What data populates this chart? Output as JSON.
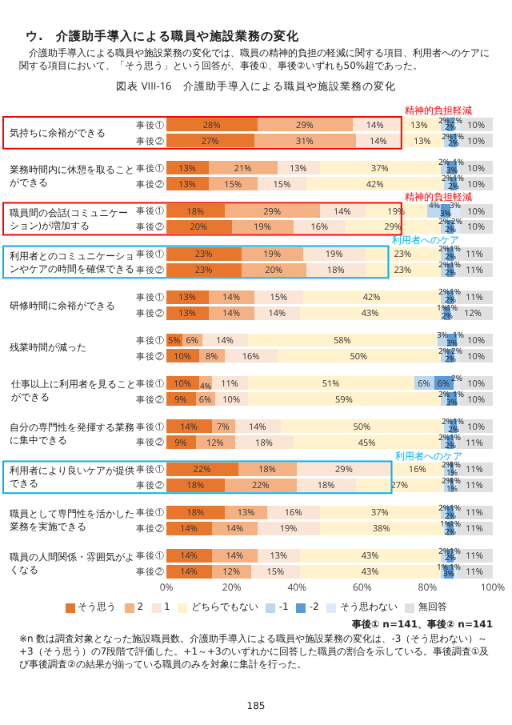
{
  "chart_data": {
    "type": "bar",
    "orientation": "horizontal",
    "stacked": true,
    "title": "図表 VIII-16　介護助手導入による職員や施設業務の変化",
    "categories": [
      "事後①",
      "事後②",
      "事後①",
      "事後②",
      "事後①",
      "事後②",
      "事後①",
      "事後②",
      "事後①",
      "事後②",
      "事後①",
      "事後②",
      "事後①",
      "事後②",
      "事後①",
      "事後②",
      "事後①",
      "事後②",
      "事後①",
      "事後②",
      "事後①",
      "事後②"
    ],
    "series": [
      {
        "name": "そう思う",
        "color": "#e8772e",
        "values": [
          28,
          27,
          13,
          13,
          18,
          20,
          23,
          23,
          13,
          13,
          5,
          10,
          10,
          9,
          14,
          9,
          22,
          18,
          18,
          14,
          14,
          14
        ],
        "value_labels": [
          "28%",
          "27%",
          "13%",
          "13%",
          "18%",
          "20%",
          "23%",
          "23%",
          "13%",
          "13%",
          "5%",
          "10%",
          "10%",
          "9%",
          "14%",
          "9%",
          "22%",
          "18%",
          "18%",
          "14%",
          "14%",
          "14%"
        ]
      },
      {
        "name": "2",
        "color": "#f4b183",
        "values": [
          29,
          31,
          21,
          15,
          29,
          19,
          19,
          20,
          14,
          14,
          6,
          8,
          4,
          6,
          7,
          12,
          18,
          22,
          13,
          14,
          14,
          12
        ],
        "value_labels": [
          "29%",
          "31%",
          "21%",
          "15%",
          "29%",
          "19%",
          "19%",
          "20%",
          "14%",
          "14%",
          "6%",
          "8%",
          "4%",
          "6%",
          "7%",
          "12%",
          "18%",
          "22%",
          "13%",
          "14%",
          "14%",
          "12%"
        ]
      },
      {
        "name": "1",
        "color": "#fbe5d6",
        "values": [
          14,
          14,
          13,
          15,
          14,
          16,
          19,
          18,
          15,
          14,
          14,
          16,
          11,
          10,
          14,
          18,
          29,
          18,
          16,
          19,
          13,
          15
        ],
        "value_labels": [
          "14%",
          "14%",
          "13%",
          "15%",
          "14%",
          "16%",
          "19%",
          "18%",
          "15%",
          "14%",
          "14%",
          "16%",
          "11%",
          "10%",
          "14%",
          "18%",
          "29%",
          "18%",
          "16%",
          "19%",
          "13%",
          "15%"
        ]
      },
      {
        "name": "どちらでもない",
        "color": "#fff2cc",
        "values": [
          13,
          13,
          37,
          42,
          19,
          29,
          23,
          23,
          42,
          43,
          58,
          50,
          51,
          59,
          50,
          45,
          16,
          27,
          37,
          38,
          43,
          43
        ],
        "value_labels": [
          "13%",
          "13%",
          "37%",
          "42%",
          "19%",
          "29%",
          "23%",
          "23%",
          "42%",
          "43%",
          "58%",
          "50%",
          "51%",
          "59%",
          "50%",
          "45%",
          "16%",
          "27%",
          "37%",
          "38%",
          "43%",
          "43%"
        ]
      },
      {
        "name": "-1",
        "color": "#bdd7ee",
        "values": [
          2,
          2,
          2,
          2,
          4,
          2,
          2,
          2,
          2,
          1,
          3,
          2,
          6,
          2,
          2,
          2,
          2,
          2,
          2,
          1,
          2,
          1
        ],
        "value_labels": [
          "2%",
          "2%",
          "2%",
          "2%",
          "4%",
          "2%",
          "2%",
          "2%",
          "2%",
          "1%",
          "3%",
          "2%",
          "6%",
          "2%",
          "2%",
          "2%",
          "2%",
          "2%",
          "2%",
          "1%",
          "2%",
          "1%"
        ]
      },
      {
        "name": "-2",
        "color": "#5b9bd5",
        "values": [
          2,
          2,
          3,
          2,
          3,
          2,
          2,
          2,
          2,
          2,
          3,
          2,
          6,
          3,
          2,
          2,
          1,
          1,
          2,
          2,
          2,
          3
        ],
        "value_labels": [
          "2%",
          "2%",
          "3%",
          "2%",
          "3%",
          "2%",
          "2%",
          "2%",
          "2%",
          "2%",
          "3%",
          "2%",
          "6%",
          "3%",
          "2%",
          "2%",
          "1%",
          "1%",
          "2%",
          "2%",
          "2%",
          "3%"
        ]
      },
      {
        "name": "そう思わない",
        "color": "#deebf7",
        "values": [
          2,
          1,
          1,
          1,
          3,
          2,
          1,
          1,
          1,
          1,
          1,
          2,
          2,
          1,
          1,
          1,
          1,
          1,
          1,
          1,
          1,
          1
        ],
        "value_labels": [
          "2%",
          "1%",
          "1%",
          "1%",
          "3%",
          "2%",
          "1%",
          "1%",
          "1%",
          "1%",
          "1%",
          "2%",
          "2%",
          "1%",
          "1%",
          "1%",
          "1%",
          "1%",
          "1%",
          "1%",
          "1%",
          "1%"
        ]
      },
      {
        "name": "無回答",
        "color": "#e0e0e0",
        "values": [
          10,
          10,
          10,
          10,
          10,
          10,
          11,
          11,
          11,
          12,
          10,
          10,
          10,
          10,
          10,
          11,
          11,
          11,
          11,
          11,
          11,
          11
        ],
        "value_labels": [
          "10%",
          "10%",
          "10%",
          "10%",
          "10%",
          "10%",
          "11%",
          "11%",
          "11%",
          "12%",
          "10%",
          "10%",
          "10%",
          "10%",
          "10%",
          "11%",
          "11%",
          "11%",
          "11%",
          "11%",
          "11%",
          "11%"
        ]
      }
    ],
    "xlim": [
      0,
      100
    ],
    "xticks": [
      {
        "value": 0,
        "label": "0%"
      },
      {
        "value": 20,
        "label": "20%"
      },
      {
        "value": 40,
        "label": "40%"
      },
      {
        "value": 60,
        "label": "60%"
      },
      {
        "value": 80,
        "label": "80%"
      },
      {
        "value": 100,
        "label": "100%"
      }
    ],
    "legend": "bottom",
    "annotations": [
      "ウ.　介護助手導入による職員や施設業務の変化",
      "介護助手導入による職員や施設業務の変化では、職員の精神的負担の軽減に関する項目、利用者へのケアに関する項目において、「そう思う」という回答が、事後①、事後②いずれも50%超であった。",
      "気持ちに余裕ができる",
      "業務時間内に休憩を取ることができる",
      "職員間の会話(コミュニケーション)が増加する",
      "利用者とのコミュニケーションやケアの時間を確保できる",
      "研修時間に余裕ができる",
      "残業時間が減った",
      "仕事以上に利用者を見ることができる",
      "自分の専門性を発揮する業務に集中できる",
      "利用者により良いケアが提供できる",
      "職員として専門性を活かした業務を実施できる",
      "職員の人間関係・雰囲気がよくなる",
      "精神的負担軽減",
      "精神的負担軽減",
      "利用者へのケア",
      "利用者へのケア",
      "事後① n=141、事後② n=141",
      "※n 数は調査対象となった施設職員数。介護助手導入による職員や施設業務の変化は、-3（そう思わない）～+3（そう思う）の7段階で評価した。+1～+3のいずれかに回答した職員の割合を示している。事後調査①及び事後調査②の結果が揃っている職員のみを対象に集計を行った。",
      "185"
    ]
  }
}
